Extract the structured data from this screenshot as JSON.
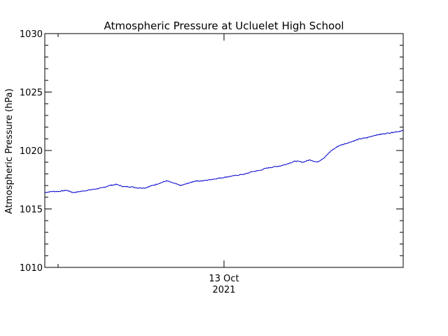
{
  "chart_data": {
    "type": "line",
    "title": "Atmospheric Pressure at Ucluelet High School",
    "ylabel": "Atmospheric Pressure (hPa)",
    "xlabel": "",
    "ylim": [
      1010,
      1030
    ],
    "yticks": [
      "1010",
      "1015",
      "1020",
      "1025",
      "1030"
    ],
    "xtick_label": {
      "line1": "13 Oct",
      "line2": "2021"
    },
    "grid": false,
    "series": [
      {
        "color": "#0000cc",
        "x": [
          0.0,
          0.02,
          0.04,
          0.06,
          0.08,
          0.1,
          0.12,
          0.14,
          0.16,
          0.18,
          0.2,
          0.22,
          0.24,
          0.26,
          0.28,
          0.3,
          0.32,
          0.34,
          0.36,
          0.38,
          0.4,
          0.42,
          0.44,
          0.46,
          0.48,
          0.5,
          0.52,
          0.54,
          0.56,
          0.58,
          0.6,
          0.62,
          0.64,
          0.66,
          0.68,
          0.7,
          0.72,
          0.74,
          0.76,
          0.78,
          0.8,
          0.82,
          0.84,
          0.86,
          0.88,
          0.9,
          0.92,
          0.94,
          0.96,
          0.98,
          1.0
        ],
        "values": [
          1016.4,
          1016.5,
          1016.5,
          1016.6,
          1016.4,
          1016.5,
          1016.6,
          1016.7,
          1016.8,
          1017.0,
          1017.1,
          1016.9,
          1016.9,
          1016.8,
          1016.8,
          1017.0,
          1017.2,
          1017.4,
          1017.2,
          1017.0,
          1017.2,
          1017.4,
          1017.4,
          1017.5,
          1017.6,
          1017.7,
          1017.8,
          1017.9,
          1018.0,
          1018.2,
          1018.3,
          1018.5,
          1018.6,
          1018.7,
          1018.9,
          1019.1,
          1019.0,
          1019.2,
          1019.0,
          1019.4,
          1020.0,
          1020.4,
          1020.6,
          1020.8,
          1021.0,
          1021.1,
          1021.3,
          1021.4,
          1021.5,
          1021.6,
          1021.7
        ]
      }
    ],
    "xtick_position_fraction": 0.5
  }
}
